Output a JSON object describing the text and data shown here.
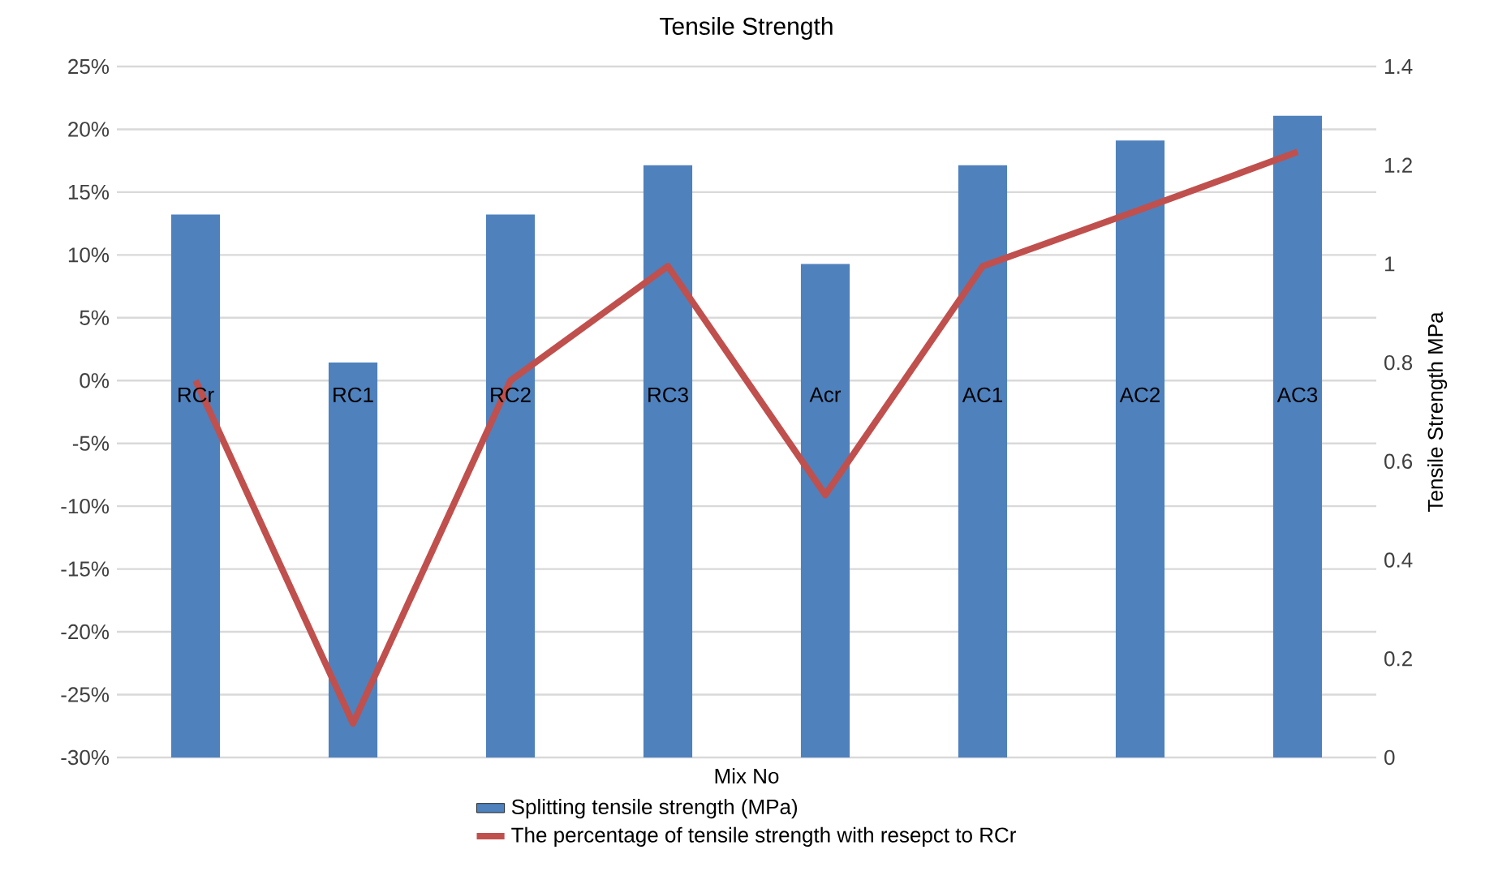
{
  "chart_data": {
    "type": "bar",
    "title": "Tensile Strength",
    "xlabel": "Mix No",
    "y2label": "Tensile Strength MPa",
    "categories": [
      "RCr",
      "RC1",
      "RC2",
      "RC3",
      "Acr",
      "AC1",
      "AC2",
      "AC3"
    ],
    "series": [
      {
        "name": "Splitting tensile strength (MPa)",
        "axis": "y2",
        "color": "#4f81bd",
        "values": [
          1.1,
          0.8,
          1.1,
          1.2,
          1.0,
          1.2,
          1.25,
          1.3
        ]
      },
      {
        "name": "The percentage of tensile strength with resepct to RCr",
        "type": "line",
        "axis": "y",
        "color": "#c0504d",
        "values": [
          0,
          -27.3,
          0,
          9.1,
          -9.1,
          9.1,
          13.6,
          18.2
        ]
      }
    ],
    "ylim": [
      -30,
      25
    ],
    "yticks": [
      {
        "value": -30,
        "label": "-30%"
      },
      {
        "value": -25,
        "label": "-25%"
      },
      {
        "value": -20,
        "label": "-20%"
      },
      {
        "value": -15,
        "label": "-15%"
      },
      {
        "value": -10,
        "label": "-10%"
      },
      {
        "value": -5,
        "label": "-5%"
      },
      {
        "value": 0,
        "label": "0%"
      },
      {
        "value": 5,
        "label": "5%"
      },
      {
        "value": 10,
        "label": "10%"
      },
      {
        "value": 15,
        "label": "15%"
      },
      {
        "value": 20,
        "label": "20%"
      },
      {
        "value": 25,
        "label": "25%"
      }
    ],
    "y2lim": [
      0,
      1.4
    ],
    "y2ticks": [
      0,
      0.2,
      0.4,
      0.6,
      0.8,
      1,
      1.2,
      1.4
    ],
    "grid": "y",
    "legend": "bottom"
  }
}
